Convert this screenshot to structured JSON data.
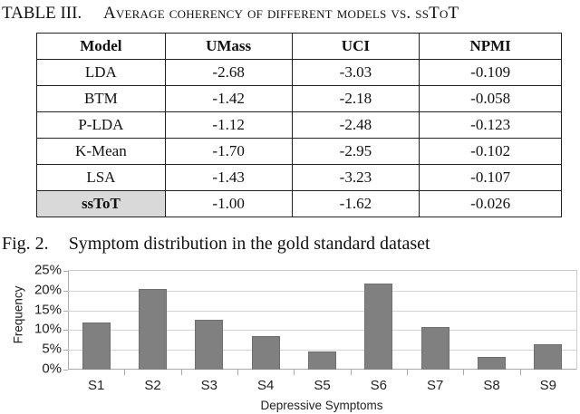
{
  "table": {
    "caption_label": "TABLE III.",
    "caption_text": "Average coherency of different models vs. ssToT",
    "headers": [
      "Model",
      "UMass",
      "UCI",
      "NPMI"
    ],
    "rows": [
      [
        "LDA",
        "-2.68",
        "-3.03",
        "-0.109"
      ],
      [
        "BTM",
        "-1.42",
        "-2.18",
        "-0.058"
      ],
      [
        "P-LDA",
        "-1.12",
        "-2.48",
        "-0.123"
      ],
      [
        "K-Mean",
        "-1.70",
        "-2.95",
        "-0.102"
      ],
      [
        "LSA",
        "-1.43",
        "-3.23",
        "-0.107"
      ],
      [
        "ssToT",
        "-1.00",
        "-1.62",
        "-0.026"
      ]
    ],
    "highlight_row": 5,
    "highlight_color": "#d9d9d9"
  },
  "figure": {
    "label": "Fig. 2.",
    "caption": "Symptom distribution in the gold standard dataset"
  },
  "chart_data": {
    "type": "bar",
    "title": "Symptom distribution in the gold standard dataset",
    "categories": [
      "S1",
      "S2",
      "S3",
      "S4",
      "S5",
      "S6",
      "S7",
      "S8",
      "S9"
    ],
    "values": [
      11.9,
      20.4,
      12.6,
      8.5,
      4.6,
      21.8,
      10.8,
      3.2,
      6.4
    ],
    "xlabel": "Depressive Symptoms",
    "ylabel": "Frequency",
    "ylim": [
      0,
      25
    ],
    "yticks": [
      "0%",
      "5%",
      "10%",
      "15%",
      "20%",
      "25%"
    ],
    "grid": true,
    "legend": null,
    "bar_color": "#808080"
  }
}
